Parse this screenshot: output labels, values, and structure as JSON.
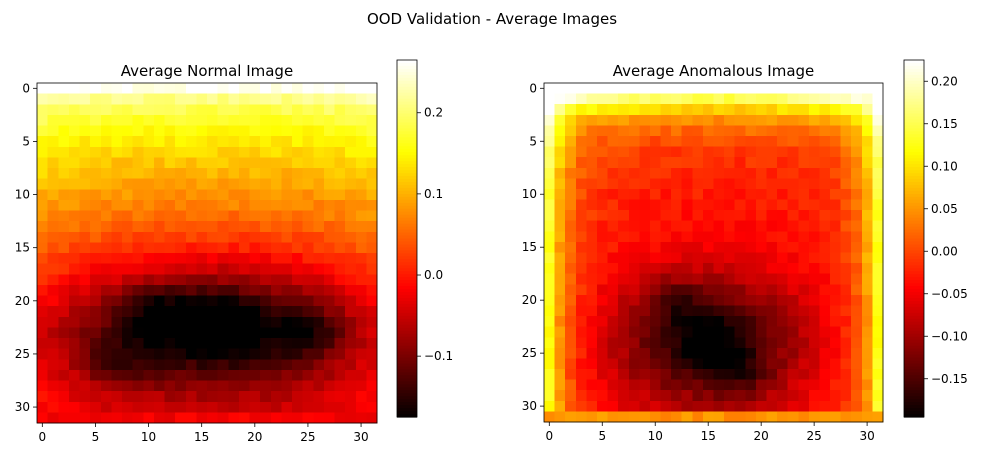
{
  "figure": {
    "suptitle": "OOD Validation - Average Images"
  },
  "chart_data": [
    {
      "type": "heatmap",
      "title": "Average Normal Image",
      "colormap": "hot",
      "grid_size": [
        32,
        32
      ],
      "x_ticks": [
        0,
        5,
        10,
        15,
        20,
        25,
        30
      ],
      "y_ticks": [
        0,
        5,
        10,
        15,
        20,
        25,
        30
      ],
      "xlim": [
        -0.5,
        31.5
      ],
      "ylim": [
        31.5,
        -0.5
      ],
      "colorbar": {
        "vmin": -0.175,
        "vmax": 0.265,
        "ticks": [
          -0.1,
          0.0,
          0.1,
          0.2
        ],
        "tick_labels": [
          "−0.1",
          "0.0",
          "0.1",
          "0.2"
        ]
      },
      "pattern": {
        "top_value": 0.26,
        "bottom_value": -0.02,
        "dark_center_row": 22.5,
        "dark_center_col": 16,
        "dark_value": -0.17,
        "dark_spots": [
          [
            22,
            17
          ],
          [
            21,
            11
          ],
          [
            26,
            7
          ],
          [
            23,
            25
          ]
        ]
      }
    },
    {
      "type": "heatmap",
      "title": "Average Anomalous Image",
      "colormap": "hot",
      "grid_size": [
        32,
        32
      ],
      "x_ticks": [
        0,
        5,
        10,
        15,
        20,
        25,
        30
      ],
      "y_ticks": [
        0,
        5,
        10,
        15,
        20,
        25,
        30
      ],
      "xlim": [
        -0.5,
        31.5
      ],
      "ylim": [
        31.5,
        -0.5
      ],
      "colorbar": {
        "vmin": -0.195,
        "vmax": 0.225,
        "ticks": [
          -0.15,
          -0.1,
          -0.05,
          0.0,
          0.05,
          0.1,
          0.15,
          0.2
        ],
        "tick_labels": [
          "−0.15",
          "−0.10",
          "−0.05",
          "0.00",
          "0.05",
          "0.10",
          "0.15",
          "0.20"
        ]
      },
      "pattern": {
        "top_value": 0.22,
        "edge_value": 0.12,
        "dark_center_row": 24,
        "dark_center_col": 15,
        "dark_value": -0.19,
        "dark_spots": [
          [
            24,
            15
          ],
          [
            27,
            18
          ],
          [
            20,
            12
          ]
        ]
      }
    }
  ]
}
